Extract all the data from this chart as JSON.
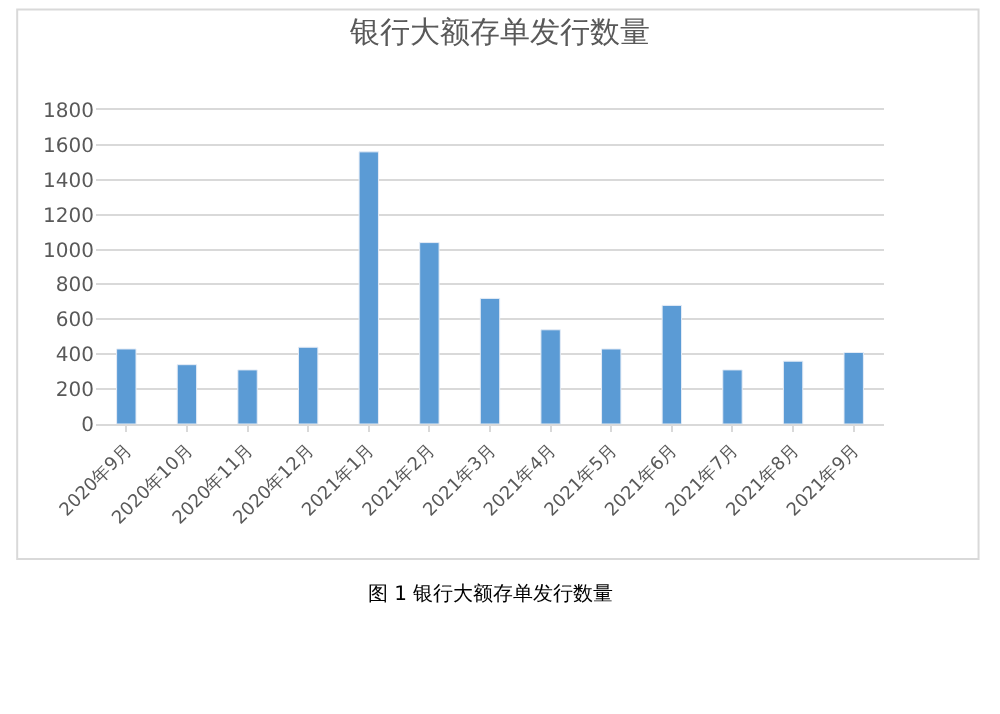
{
  "chart_data": {
    "type": "bar",
    "title": "银行大额存单发行数量",
    "categories": [
      "2020年9月",
      "2020年10月",
      "2020年11月",
      "2020年12月",
      "2021年1月",
      "2021年2月",
      "2021年3月",
      "2021年4月",
      "2021年5月",
      "2021年6月",
      "2021年7月",
      "2021年8月",
      "2021年9月"
    ],
    "values": [
      430,
      340,
      310,
      440,
      1560,
      1040,
      720,
      540,
      430,
      680,
      310,
      360,
      410
    ],
    "color": "#5b9bd5",
    "ylim": [
      0,
      1800
    ],
    "yticks": [
      0,
      200,
      400,
      600,
      800,
      1000,
      1200,
      1400,
      1600,
      1800
    ],
    "grid": "y",
    "annotations": [
      "图 1 银行大额存单发行数量"
    ]
  }
}
